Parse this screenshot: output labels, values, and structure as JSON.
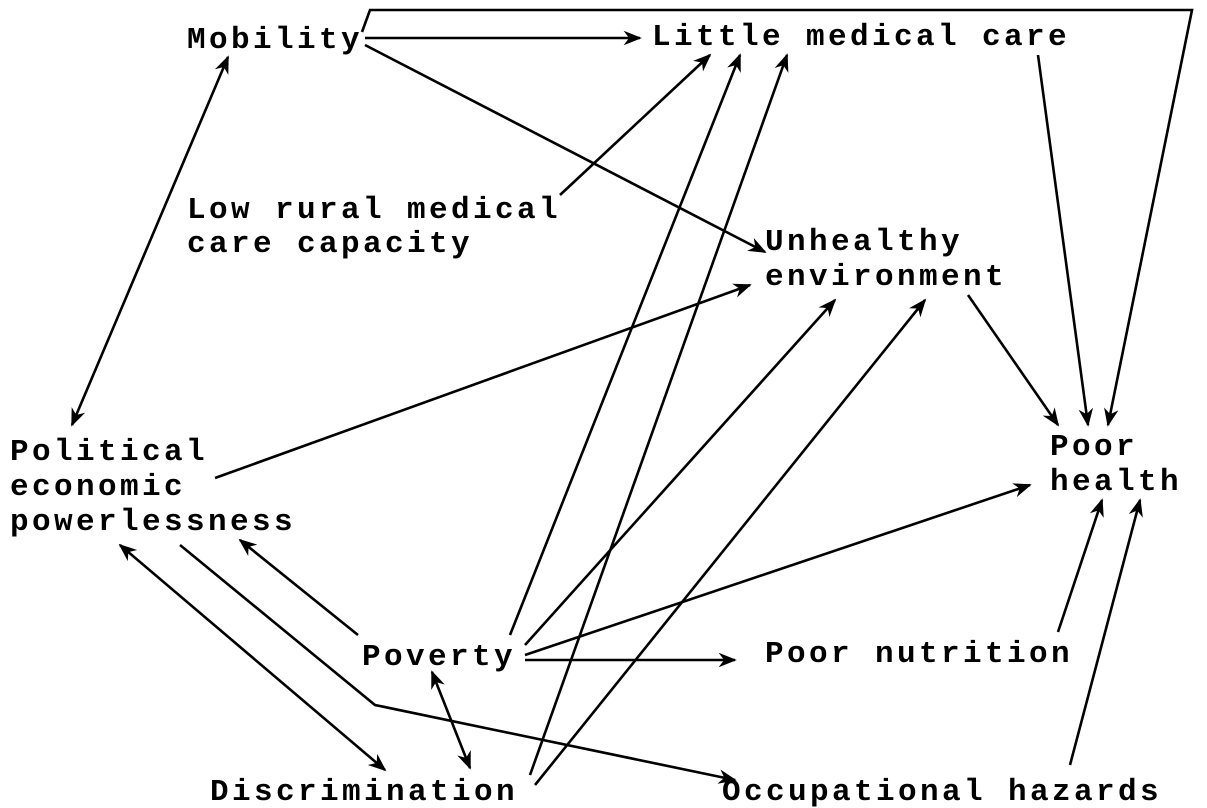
{
  "nodes": [
    {
      "lines": [
        "Mobility"
      ]
    },
    {
      "lines": [
        "Little medical care"
      ]
    },
    {
      "lines": [
        "Low rural medical",
        "care capacity"
      ]
    },
    {
      "lines": [
        "Unhealthy",
        "environment"
      ]
    },
    {
      "lines": [
        "Political",
        "economic",
        "powerlessness"
      ]
    },
    {
      "lines": [
        "Poor",
        "health"
      ]
    },
    {
      "lines": [
        "Poverty"
      ]
    },
    {
      "lines": [
        "Poor nutrition"
      ]
    },
    {
      "lines": [
        "Discrimination"
      ]
    },
    {
      "lines": [
        "Occupational hazards"
      ]
    }
  ]
}
